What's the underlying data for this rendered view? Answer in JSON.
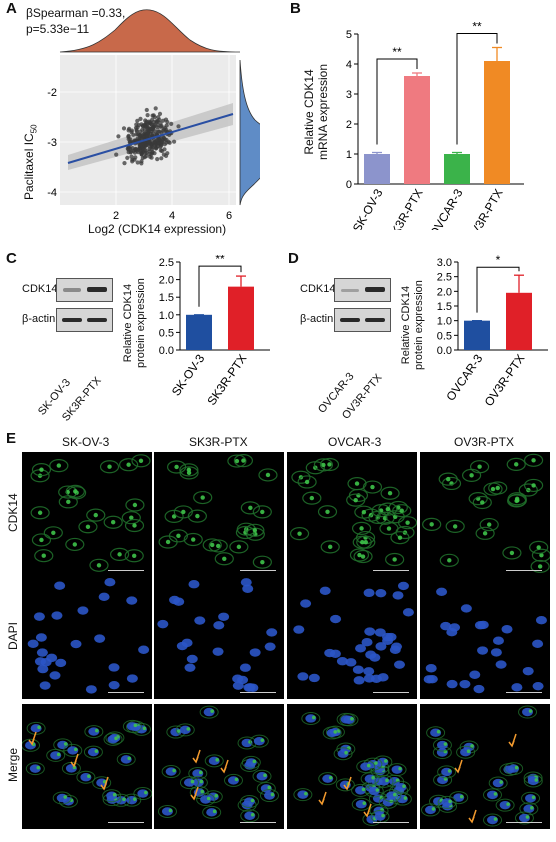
{
  "panels": {
    "A": "A",
    "B": "B",
    "C": "C",
    "D": "D",
    "E": "E"
  },
  "panelA": {
    "stat_line1": "βSpearman =0.33,",
    "stat_line2": "p=5.33e−11",
    "ylabel": "Paclitaxel IC",
    "ylabel_sub": "50",
    "xlabel": "Log2 (CDK14 expression)",
    "x_ticks": [
      "2",
      "4",
      "6"
    ],
    "y_ticks": [
      "-2",
      "-3",
      "-4"
    ],
    "colors": {
      "points": "#404040",
      "line": "#2a4fa3",
      "top_density": "#c8694a",
      "right_density": "#5f8cc6",
      "band": "#c4c4c4"
    }
  },
  "chart_data": [
    {
      "type": "scatter",
      "title": "",
      "xlabel": "Log2 (CDK14 expression)",
      "ylabel": "Paclitaxel IC50",
      "xlim": [
        0.5,
        6.5
      ],
      "ylim": [
        -4.2,
        -1.6
      ],
      "fit_line": {
        "x": [
          0.8,
          6.0
        ],
        "y": [
          -3.35,
          -2.75
        ]
      },
      "series": [
        {
          "points_count": 300
        }
      ]
    },
    {
      "type": "bar",
      "categories": [
        "SK-OV-3",
        "SK3R-PTX",
        "OVCAR-3",
        "OV3R-PTX"
      ],
      "values": [
        1.0,
        3.6,
        1.0,
        4.1
      ],
      "errors": [
        0.05,
        0.1,
        0.05,
        0.45
      ],
      "colors": [
        "#8c94cc",
        "#ef7a80",
        "#3bb34a",
        "#f08a24"
      ],
      "ylabel": "Relative CDK14 mRNA expression",
      "ylim": [
        0,
        5
      ],
      "y_ticks": [
        "0",
        "1",
        "2",
        "3",
        "4",
        "5"
      ],
      "significance": [
        {
          "pair": [
            0,
            1
          ],
          "label": "**"
        },
        {
          "pair": [
            2,
            3
          ],
          "label": "**"
        }
      ]
    },
    {
      "type": "bar",
      "categories": [
        "SK-OV-3",
        "SK3R-PTX"
      ],
      "values": [
        1.0,
        1.8
      ],
      "errors": [
        0,
        0.3
      ],
      "colors": [
        "#1f4fa0",
        "#e02028"
      ],
      "ylabel": "Relative CDK14 protein expression",
      "ylim": [
        0,
        2.5
      ],
      "y_ticks": [
        "0.0",
        "0.5",
        "1.0",
        "1.5",
        "2.0",
        "2.5"
      ],
      "significance": [
        {
          "pair": [
            0,
            1
          ],
          "label": "**"
        }
      ]
    },
    {
      "type": "bar",
      "categories": [
        "OVCAR-3",
        "OV3R-PTX"
      ],
      "values": [
        1.0,
        1.95
      ],
      "errors": [
        0,
        0.6
      ],
      "colors": [
        "#1f4fa0",
        "#e02028"
      ],
      "ylabel": "Relative CDK14 protein expression",
      "ylim": [
        0,
        3.0
      ],
      "y_ticks": [
        "0.0",
        "0.5",
        "1.0",
        "1.5",
        "2.0",
        "2.5",
        "3.0"
      ],
      "significance": [
        {
          "pair": [
            0,
            1
          ],
          "label": "*"
        }
      ]
    }
  ],
  "panelC": {
    "blot_labels": [
      "CDK14",
      "β-actin"
    ],
    "lanes": [
      "SK-OV-3",
      "SK3R-PTX"
    ]
  },
  "panelD": {
    "blot_labels": [
      "CDK14",
      "β-actin"
    ],
    "lanes": [
      "OVCAR-3",
      "OV3R-PTX"
    ]
  },
  "panelE": {
    "columns": [
      "SK-OV-3",
      "SK3R-PTX",
      "OVCAR-3",
      "OV3R-PTX"
    ],
    "rows": [
      "CDK14",
      "DAPI",
      "Merge"
    ]
  }
}
